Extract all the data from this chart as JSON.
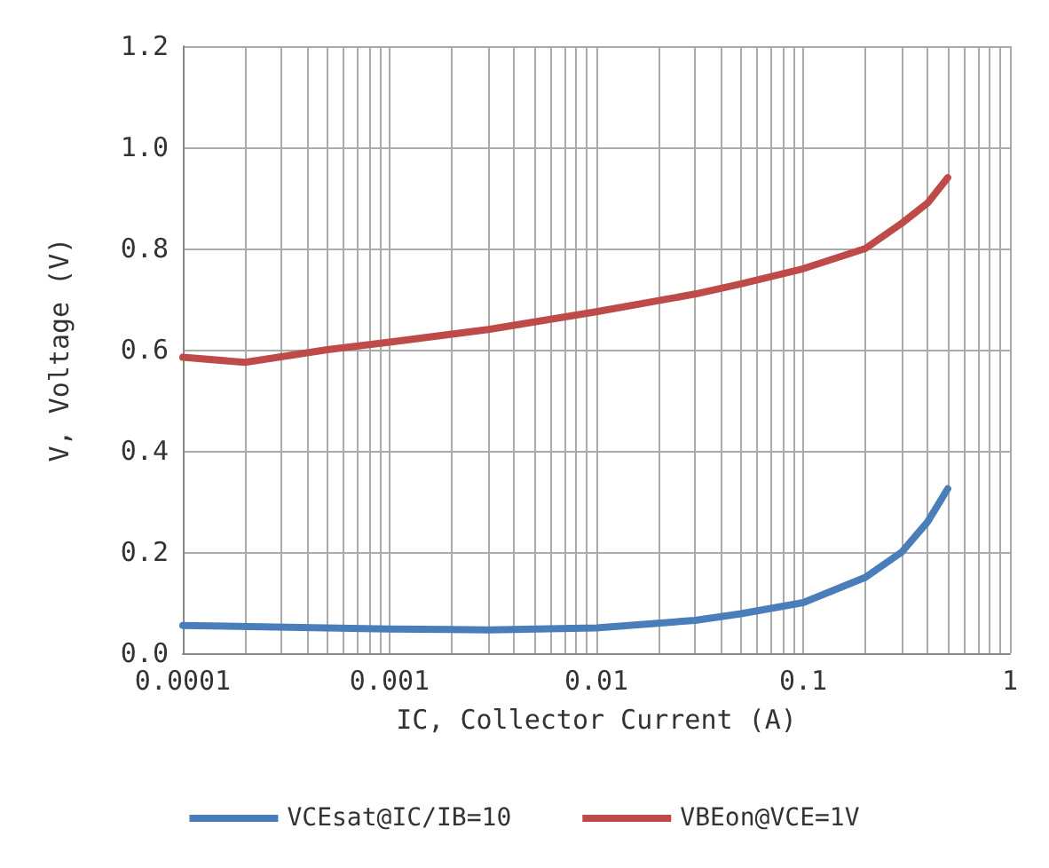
{
  "chart_data": {
    "type": "line",
    "xlabel": "IC, Collector Current (A)",
    "ylabel": "V, Voltage (V)",
    "log": "x",
    "grid": true,
    "legend": "bottom",
    "marker": "none",
    "line_style": "solid",
    "xlim": [
      0.0001,
      1
    ],
    "xticks": [
      {
        "value": 0.0001,
        "label": "0.0001"
      },
      {
        "value": 0.0002,
        "label": null
      },
      {
        "value": 0.0003,
        "label": null
      },
      {
        "value": 0.0004,
        "label": null
      },
      {
        "value": 0.0005,
        "label": null
      },
      {
        "value": 0.0006,
        "label": null
      },
      {
        "value": 0.0007,
        "label": null
      },
      {
        "value": 0.0008,
        "label": null
      },
      {
        "value": 0.0009,
        "label": null
      },
      {
        "value": 0.001,
        "label": "0.001"
      },
      {
        "value": 0.002,
        "label": null
      },
      {
        "value": 0.003,
        "label": null
      },
      {
        "value": 0.004,
        "label": null
      },
      {
        "value": 0.005,
        "label": null
      },
      {
        "value": 0.006,
        "label": null
      },
      {
        "value": 0.007,
        "label": null
      },
      {
        "value": 0.008,
        "label": null
      },
      {
        "value": 0.009,
        "label": null
      },
      {
        "value": 0.01,
        "label": "0.01"
      },
      {
        "value": 0.02,
        "label": null
      },
      {
        "value": 0.03,
        "label": null
      },
      {
        "value": 0.04,
        "label": null
      },
      {
        "value": 0.05,
        "label": null
      },
      {
        "value": 0.06,
        "label": null
      },
      {
        "value": 0.07,
        "label": null
      },
      {
        "value": 0.08,
        "label": null
      },
      {
        "value": 0.09,
        "label": null
      },
      {
        "value": 0.1,
        "label": "0.1"
      },
      {
        "value": 0.2,
        "label": null
      },
      {
        "value": 0.3,
        "label": null
      },
      {
        "value": 0.4,
        "label": null
      },
      {
        "value": 0.5,
        "label": null
      },
      {
        "value": 0.6,
        "label": null
      },
      {
        "value": 0.7,
        "label": null
      },
      {
        "value": 0.8,
        "label": null
      },
      {
        "value": 0.9,
        "label": null
      },
      {
        "value": 1,
        "label": "1"
      }
    ],
    "ylim": [
      0,
      1.2
    ],
    "yticks": [
      {
        "value": 0,
        "label": "0.0"
      },
      {
        "value": 0.2,
        "label": "0.2"
      },
      {
        "value": 0.4,
        "label": "0.4"
      },
      {
        "value": 0.6,
        "label": "0.6"
      },
      {
        "value": 0.8,
        "label": "0.8"
      },
      {
        "value": 1,
        "label": "1.0"
      },
      {
        "value": 1.2,
        "label": "1.2"
      }
    ],
    "series": [
      {
        "name": "VCEsat@IC/IB=10",
        "color": "#4a7ebb",
        "x": [
          0.0001,
          0.001,
          0.003,
          0.01,
          0.03,
          0.05,
          0.1,
          0.2,
          0.3,
          0.4,
          0.5
        ],
        "values": [
          0.055,
          0.048,
          0.046,
          0.05,
          0.065,
          0.078,
          0.1,
          0.15,
          0.2,
          0.26,
          0.325
        ]
      },
      {
        "name": "VBEon@VCE=1V",
        "color": "#be4b48",
        "x": [
          0.0001,
          0.0002,
          0.0005,
          0.001,
          0.003,
          0.01,
          0.03,
          0.05,
          0.1,
          0.2,
          0.3,
          0.4,
          0.5
        ],
        "values": [
          0.585,
          0.575,
          0.6,
          0.615,
          0.64,
          0.675,
          0.71,
          0.73,
          0.76,
          0.8,
          0.85,
          0.89,
          0.94
        ]
      }
    ]
  }
}
